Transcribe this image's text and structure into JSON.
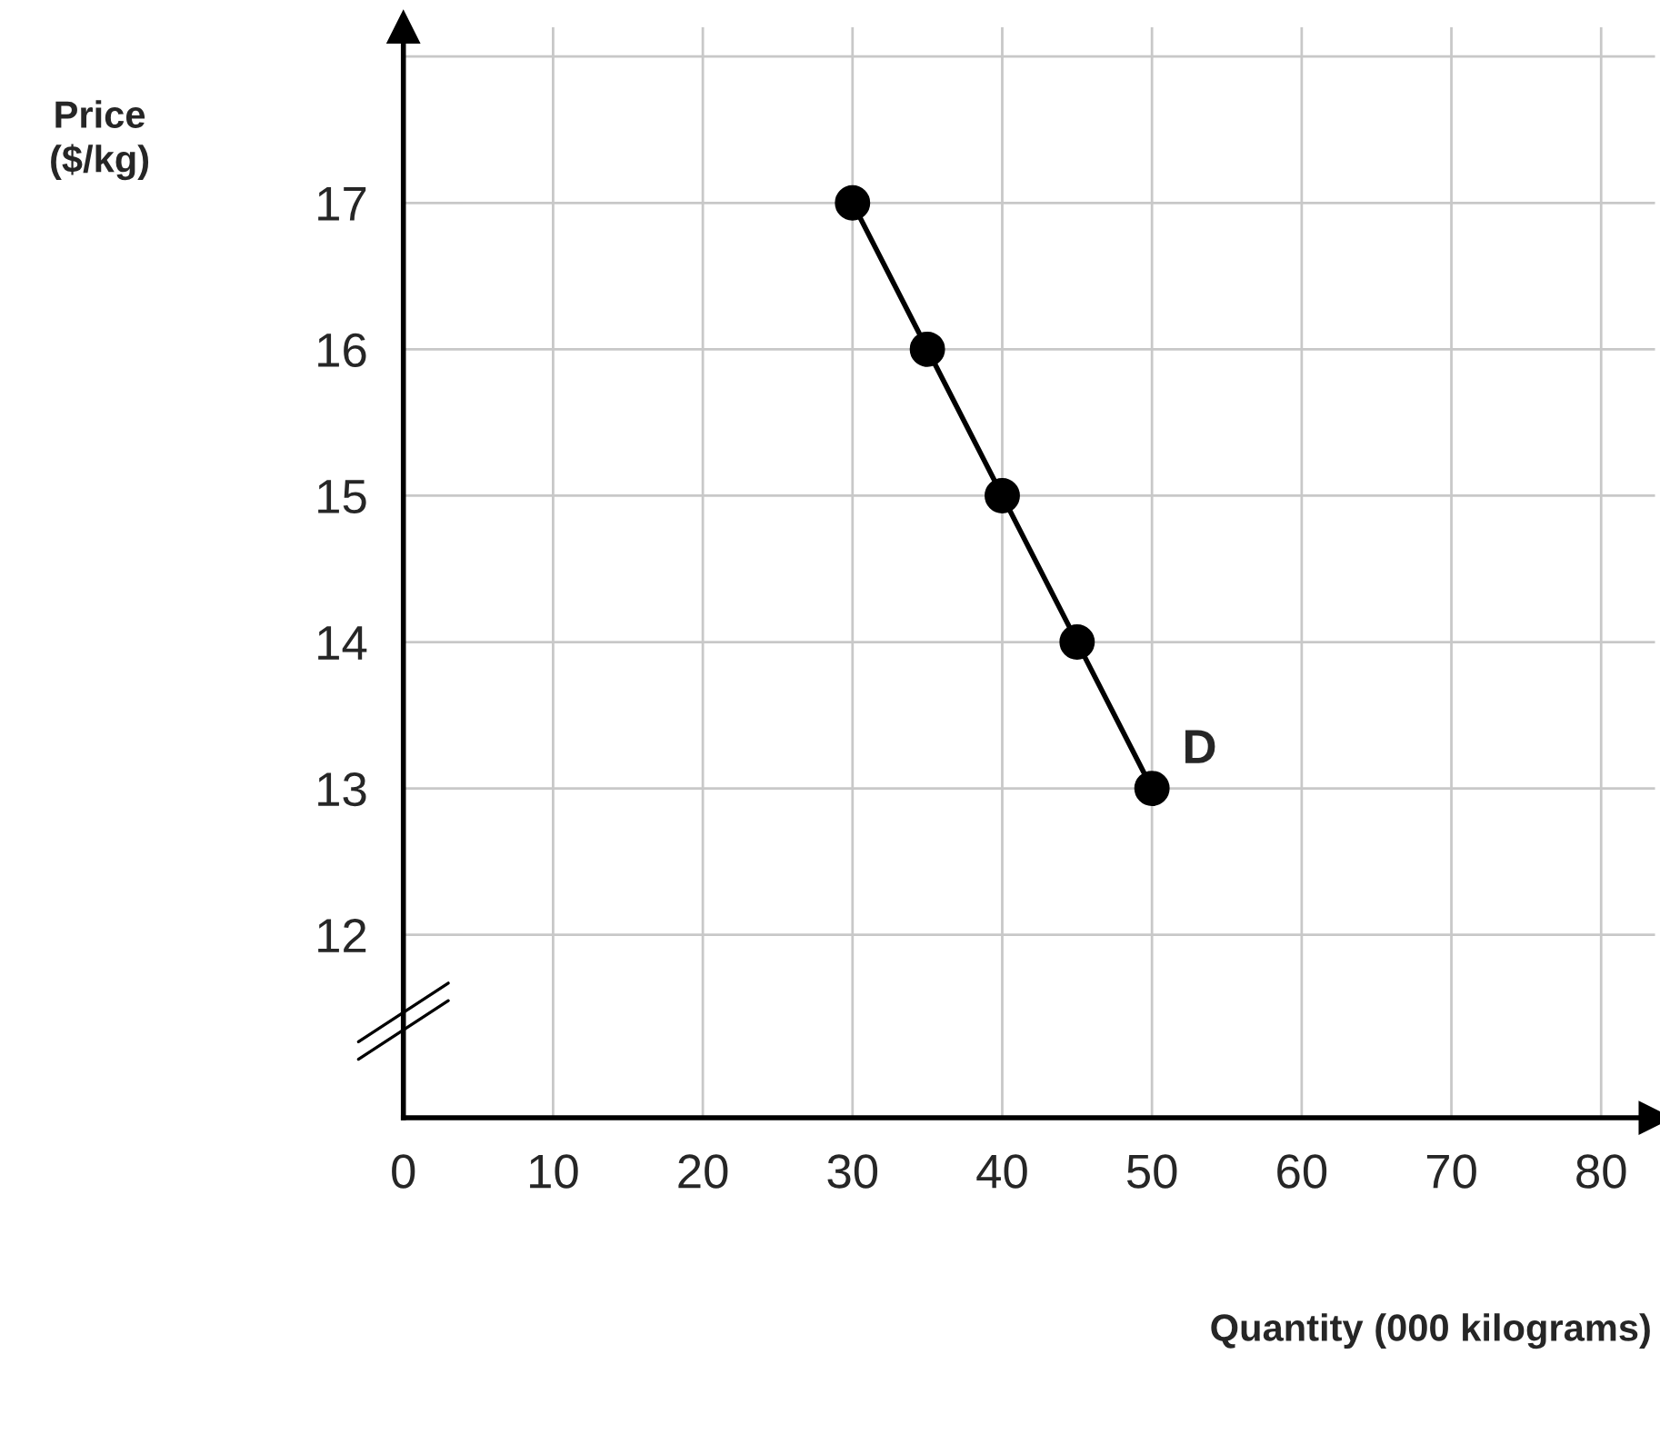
{
  "chart_data": {
    "type": "line",
    "xlabel": "Quantity (000 kilograms)",
    "ylabel": "Price\n($/kg)",
    "x": [
      30,
      35,
      40,
      45,
      50
    ],
    "series": [
      {
        "color": "#000000",
        "values": [
          17,
          16,
          15,
          14,
          13
        ]
      }
    ],
    "xlim": [
      0,
      83.6
    ],
    "ylim": [
      10.75,
      18.2
    ],
    "xticks": [
      0,
      10,
      20,
      30,
      40,
      50,
      60,
      70,
      80
    ],
    "yticks": [
      12,
      13,
      14,
      15,
      16,
      17,
      {
        "value": 18,
        "label": null
      }
    ],
    "grid": true,
    "marker": "circle",
    "line_style": "solid",
    "annotations": [
      {
        "text": "D",
        "x": 50,
        "y": 13
      }
    ]
  }
}
